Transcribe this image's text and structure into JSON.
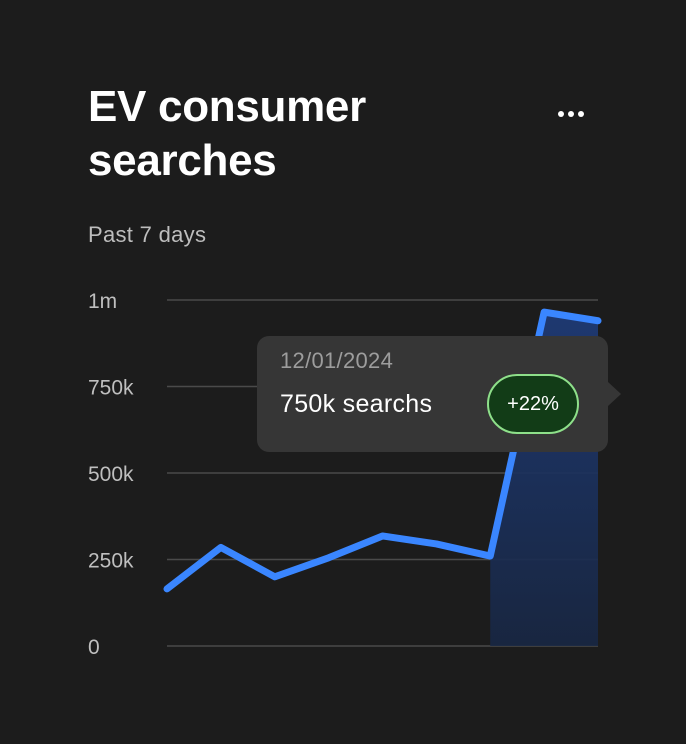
{
  "header": {
    "title": "EV consumer searches",
    "subtitle": "Past 7 days",
    "more_icon": "more-horizontal-icon"
  },
  "tooltip": {
    "date": "12/01/2024",
    "value": "750k searchs",
    "badge": "+22%"
  },
  "colors": {
    "background": "#1c1c1c",
    "line": "#3a86ff",
    "area": "#1a2d55",
    "grid": "#4a4a4a",
    "badge_border": "#8ee08a",
    "badge_fill": "#123c17"
  },
  "chart_data": {
    "type": "area",
    "title": "EV consumer searches",
    "subtitle": "Past 7 days",
    "ylim": [
      0,
      1000000
    ],
    "yticks": [
      {
        "value": 0,
        "label": "0"
      },
      {
        "value": 250000,
        "label": "250k"
      },
      {
        "value": 500000,
        "label": "500k"
      },
      {
        "value": 750000,
        "label": "750k"
      },
      {
        "value": 1000000,
        "label": "1m"
      }
    ],
    "x": [
      0,
      1,
      2,
      3,
      4,
      5,
      6,
      7,
      8
    ],
    "xlim": [
      0,
      8
    ],
    "series": [
      {
        "values": [
          165000,
          285000,
          200000,
          255000,
          318000,
          295000,
          260000,
          965000,
          940000
        ]
      }
    ],
    "area_from_index": 6,
    "grid": true,
    "legend": "none"
  }
}
